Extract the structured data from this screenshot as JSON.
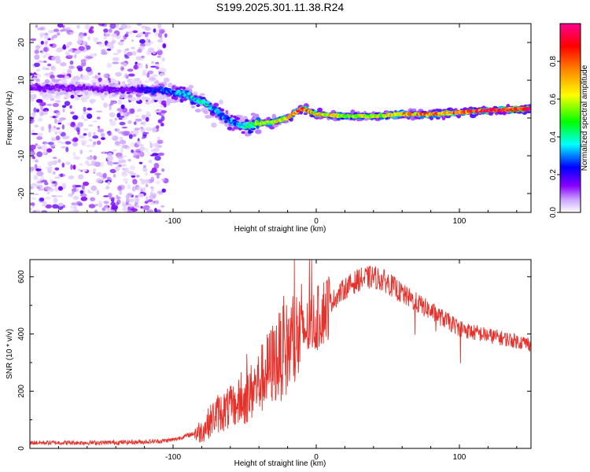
{
  "figure": {
    "title": "S199.2025.301.11.38.R24"
  },
  "chart_data": [
    {
      "type": "heatmap",
      "title": "S199.2025.301.11.38.R24",
      "xlabel": "Height of straight line (km)",
      "ylabel": "Frequency (Hz)",
      "xlim": [
        -200,
        150
      ],
      "ylim": [
        -25,
        25
      ],
      "xticks": [
        -100,
        0,
        100
      ],
      "yticks": [
        -20,
        -10,
        0,
        10,
        20
      ],
      "colorbar": {
        "label": "Normalized spectral amplitude",
        "range": [
          0,
          1
        ],
        "ticks": [
          0.0,
          0.2,
          0.4,
          0.6,
          0.8
        ],
        "tick_labels": [
          "0.0",
          "0.2",
          "0.4",
          "0.6",
          "0.8"
        ],
        "colors": [
          "#ffffff",
          "#a000ff",
          "#0000ff",
          "#00ffff",
          "#00ff00",
          "#ffff00",
          "#ff8000",
          "#ff0000",
          "#ff00a0"
        ]
      },
      "ridge": {
        "x": [
          -200,
          -180,
          -160,
          -140,
          -120,
          -100,
          -90,
          -80,
          -70,
          -60,
          -50,
          -45,
          -40,
          -30,
          -20,
          -10,
          0,
          20,
          40,
          60,
          80,
          100,
          120,
          150
        ],
        "y": [
          8,
          8,
          8,
          7.5,
          7.5,
          7,
          6,
          4.5,
          2,
          -1,
          -2.5,
          -2,
          -1.5,
          -1,
          0,
          2.5,
          1,
          0.5,
          0.5,
          1,
          1,
          1.5,
          2,
          2.5
        ],
        "amplitude": [
          0.15,
          0.15,
          0.15,
          0.15,
          0.2,
          0.3,
          0.35,
          0.4,
          0.3,
          0.3,
          0.4,
          0.5,
          0.55,
          0.6,
          0.7,
          0.85,
          0.7,
          0.6,
          0.6,
          0.7,
          0.8,
          0.85,
          0.95,
          0.95
        ]
      }
    },
    {
      "type": "line",
      "xlabel": "Height of straight line (km)",
      "ylabel": "SNR (10 * v/v)",
      "xlim": [
        -200,
        150
      ],
      "ylim": [
        0,
        660
      ],
      "xticks": [
        -100,
        0,
        100
      ],
      "yticks": [
        0,
        200,
        400,
        600
      ],
      "series": [
        {
          "name": "SNR",
          "color": "#e8302a",
          "x": [
            -200,
            -175,
            -150,
            -125,
            -110,
            -100,
            -90,
            -80,
            -75,
            -70,
            -60,
            -50,
            -40,
            -30,
            -20,
            -10,
            0,
            10,
            20,
            30,
            40,
            50,
            60,
            70,
            80,
            90,
            100,
            110,
            120,
            130,
            140,
            150
          ],
          "values": [
            20,
            20,
            20,
            22,
            25,
            30,
            45,
            60,
            90,
            120,
            140,
            170,
            230,
            300,
            350,
            400,
            450,
            510,
            560,
            590,
            600,
            580,
            540,
            510,
            480,
            450,
            420,
            405,
            395,
            385,
            375,
            365
          ]
        }
      ]
    }
  ]
}
